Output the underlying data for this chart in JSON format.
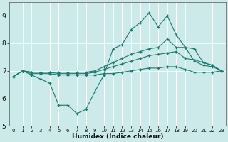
{
  "background_color": "#cceaea",
  "line_color": "#1a7a6e",
  "grid_color": "#b0d8d8",
  "xlabel": "Humidex (Indice chaleur)",
  "ylim": [
    5.0,
    9.5
  ],
  "xlim": [
    -0.5,
    23.5
  ],
  "yticks": [
    5,
    6,
    7,
    8,
    9
  ],
  "xticks": [
    0,
    1,
    2,
    3,
    4,
    5,
    6,
    7,
    8,
    9,
    10,
    11,
    12,
    13,
    14,
    15,
    16,
    17,
    18,
    19,
    20,
    21,
    22,
    23
  ],
  "series": [
    {
      "x": [
        0,
        1,
        2,
        3,
        4,
        5,
        6,
        7,
        8,
        9,
        10,
        11,
        12,
        13,
        14,
        15,
        16,
        17,
        18,
        19,
        20,
        21,
        22,
        23
      ],
      "y": [
        6.8,
        7.0,
        6.85,
        6.7,
        6.55,
        5.75,
        5.75,
        5.45,
        5.6,
        6.25,
        6.85,
        7.8,
        7.95,
        8.5,
        8.75,
        9.1,
        8.6,
        9.0,
        8.3,
        7.85,
        7.35,
        7.2,
        7.15,
        7.0
      ]
    },
    {
      "x": [
        0,
        1,
        2,
        3,
        4,
        5,
        6,
        7,
        8,
        9,
        10,
        11,
        12,
        13,
        14,
        15,
        16,
        17,
        18,
        19,
        20,
        21,
        22,
        23
      ],
      "y": [
        6.8,
        7.0,
        6.95,
        6.95,
        6.95,
        6.95,
        6.95,
        6.95,
        6.95,
        7.0,
        7.15,
        7.3,
        7.45,
        7.6,
        7.7,
        7.8,
        7.85,
        8.15,
        7.85,
        7.85,
        7.8,
        7.3,
        7.2,
        7.0
      ]
    },
    {
      "x": [
        0,
        1,
        2,
        3,
        4,
        5,
        6,
        7,
        8,
        9,
        10,
        11,
        12,
        13,
        14,
        15,
        16,
        17,
        18,
        19,
        20,
        21,
        22,
        23
      ],
      "y": [
        6.8,
        7.0,
        6.95,
        6.95,
        6.95,
        6.9,
        6.9,
        6.9,
        6.9,
        6.95,
        7.05,
        7.15,
        7.25,
        7.35,
        7.45,
        7.55,
        7.6,
        7.65,
        7.7,
        7.45,
        7.4,
        7.3,
        7.2,
        7.0
      ]
    },
    {
      "x": [
        0,
        1,
        2,
        3,
        4,
        5,
        6,
        7,
        8,
        9,
        10,
        11,
        12,
        13,
        14,
        15,
        16,
        17,
        18,
        19,
        20,
        21,
        22,
        23
      ],
      "y": [
        6.8,
        7.0,
        6.9,
        6.9,
        6.9,
        6.85,
        6.85,
        6.85,
        6.85,
        6.85,
        6.9,
        6.9,
        6.95,
        7.0,
        7.05,
        7.1,
        7.1,
        7.15,
        7.15,
        7.05,
        6.95,
        6.95,
        6.95,
        7.0
      ]
    }
  ]
}
